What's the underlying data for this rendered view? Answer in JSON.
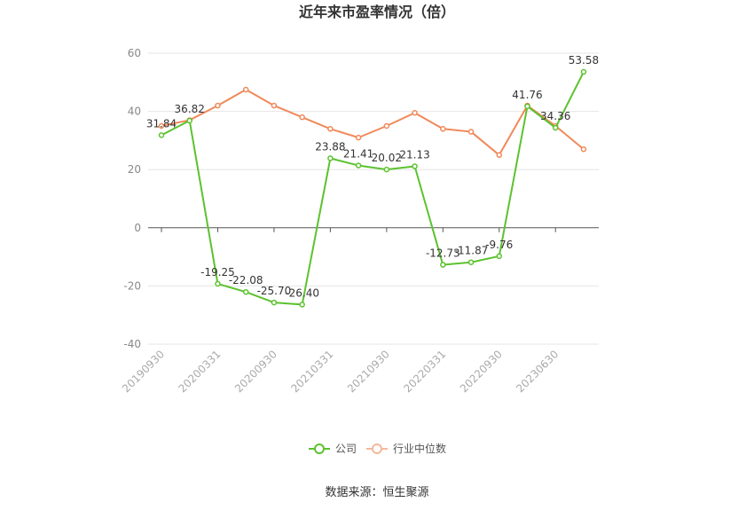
{
  "chart_data": {
    "type": "line",
    "title": "近年来市盈率情况（倍）",
    "source": "数据来源：恒生聚源",
    "ylim": [
      -40,
      60
    ],
    "yticks": [
      60,
      40,
      20,
      0,
      -20,
      -40
    ],
    "x_tick_labels": [
      "20190930",
      "20200331",
      "20200930",
      "20210331",
      "20210930",
      "20220331",
      "20220930",
      "20230630"
    ],
    "series": [
      {
        "name": "公司",
        "color": "#5cc22f",
        "values": [
          31.84,
          36.82,
          -19.25,
          -22.08,
          -25.7,
          -26.4,
          23.88,
          21.41,
          20.02,
          21.13,
          -12.73,
          -11.87,
          -9.76,
          41.76,
          34.36,
          53.58
        ],
        "labels": [
          "31.84",
          "36.82",
          "-19.25",
          "-22.08",
          "-25.70",
          "-26.40",
          "23.88",
          "21.41",
          "20.02",
          "21.13",
          "-12.73",
          "-11.87",
          "-9.76",
          "41.76",
          "34.36",
          "53.58"
        ]
      },
      {
        "name": "行业中位数",
        "color": "#f0895a",
        "values": [
          35.0,
          37.0,
          42.0,
          47.5,
          42.0,
          38.0,
          34.0,
          31.0,
          35.0,
          39.5,
          34.0,
          33.0,
          25.0,
          42.0,
          35.0,
          27.0
        ]
      }
    ],
    "grid": true,
    "legend_position": "bottom"
  }
}
